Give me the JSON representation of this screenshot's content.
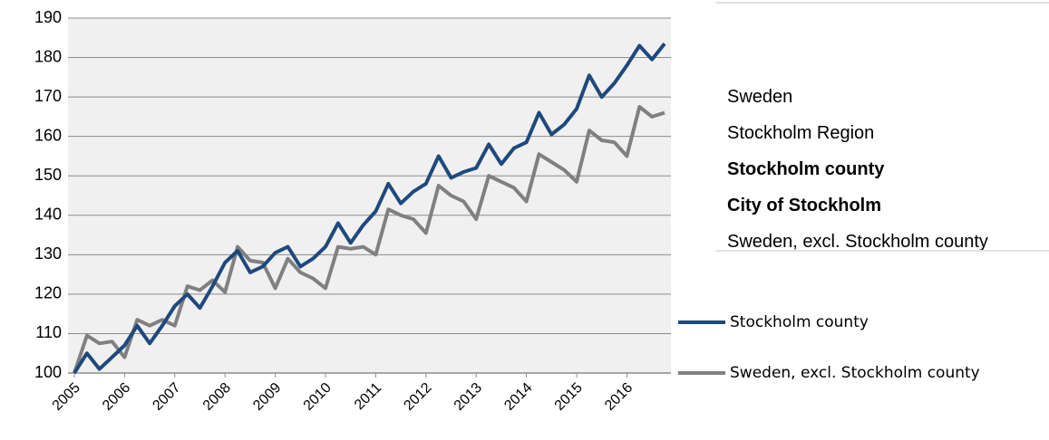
{
  "chart_data": {
    "type": "line",
    "categories": [
      "2005",
      null,
      null,
      null,
      "2006",
      null,
      null,
      null,
      "2007",
      null,
      null,
      null,
      "2008",
      null,
      null,
      null,
      "2009",
      null,
      null,
      null,
      "2010",
      null,
      null,
      null,
      "2011",
      null,
      null,
      null,
      "2012",
      null,
      null,
      null,
      "2013",
      null,
      null,
      null,
      "2014",
      null,
      null,
      null,
      "2015",
      null,
      null,
      null,
      "2016",
      null,
      null,
      null
    ],
    "series": [
      {
        "name": "Stockholm county",
        "color": "#1f497d",
        "values": [
          100,
          105,
          101,
          104,
          107,
          112,
          107.5,
          112,
          117,
          120,
          116.5,
          122,
          128,
          131,
          125.5,
          127,
          130.5,
          132,
          127,
          129,
          132,
          138,
          133,
          137.5,
          141,
          148,
          143,
          146,
          148,
          155,
          149.5,
          151,
          152,
          158,
          153,
          157,
          158.5,
          166,
          160.5,
          163,
          167,
          175.5,
          170,
          173.5,
          178,
          183,
          179.5,
          183.5
        ]
      },
      {
        "name": "Sweden, excl. Stockholm county",
        "color": "#808080",
        "values": [
          100,
          109.5,
          107.5,
          108,
          104,
          113.5,
          112,
          113.5,
          112,
          122,
          121,
          123.5,
          120.5,
          132,
          128.5,
          128,
          121.5,
          129,
          125.5,
          124,
          121.5,
          132,
          131.5,
          132,
          130,
          141.5,
          140,
          139,
          135.5,
          147.5,
          145,
          143.5,
          139,
          150,
          148.5,
          147,
          143.5,
          155.5,
          153.5,
          151.5,
          148.5,
          161.5,
          159,
          158.5,
          155,
          167.5,
          165,
          166
        ]
      }
    ],
    "ylim": [
      100,
      190
    ],
    "yticks": [
      100,
      110,
      120,
      130,
      140,
      150,
      160,
      170,
      180,
      190
    ],
    "grid": true
  },
  "dropdown": {
    "items": [
      {
        "label": "Sweden",
        "bold": false
      },
      {
        "label": "Stockholm Region",
        "bold": false
      },
      {
        "label": "Stockholm county",
        "bold": true
      },
      {
        "label": "City of Stockholm",
        "bold": true
      },
      {
        "label": "Sweden, excl. Stockholm county",
        "bold": false
      }
    ]
  }
}
